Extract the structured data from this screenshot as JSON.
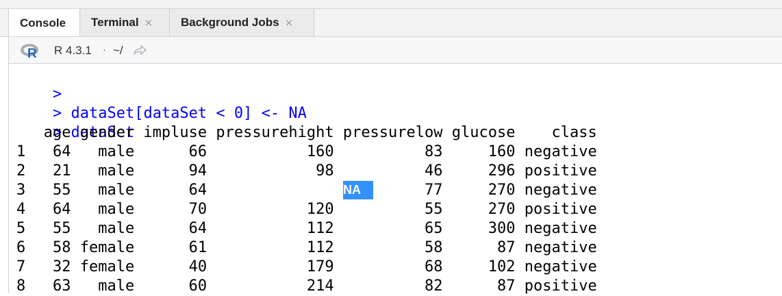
{
  "tabs": [
    {
      "label": "Console",
      "active": true
    },
    {
      "label": "Terminal",
      "close": "×"
    },
    {
      "label": "Background Jobs",
      "close": "×"
    }
  ],
  "toolbar": {
    "r_version": "R 4.3.1",
    "separator": "·",
    "working_dir": "~/",
    "icons": [
      "r-logo-icon",
      "goto-directory-arrow-icon"
    ]
  },
  "console": {
    "lines": [
      {
        "prompt": ">",
        "text": ""
      },
      {
        "prompt": ">",
        "text": "dataSet[dataSet < 0] <- NA"
      },
      {
        "prompt": ">",
        "text": "dataSet"
      }
    ],
    "header": "   age gender impluse pressurehight pressurelow glucose    class",
    "rows": [
      "1   64   male      66           160          83     160 negative",
      "2   21   male      94            98          46     296 positive",
      "3   55   male      64                        77     270 negative",
      "4   64   male      70           120          55     270 positive",
      "5   55   male      64           112          65     300 negative",
      "6   58 female      61           112          58      87 negative",
      "7   32 female      40           179          68     102 negative",
      "8   63   male      60           214          82      87 positive"
    ],
    "selected_value": "NA",
    "colors": {
      "prompt": "#0000ff",
      "output": "#000000",
      "selection": "#3390ff"
    }
  }
}
